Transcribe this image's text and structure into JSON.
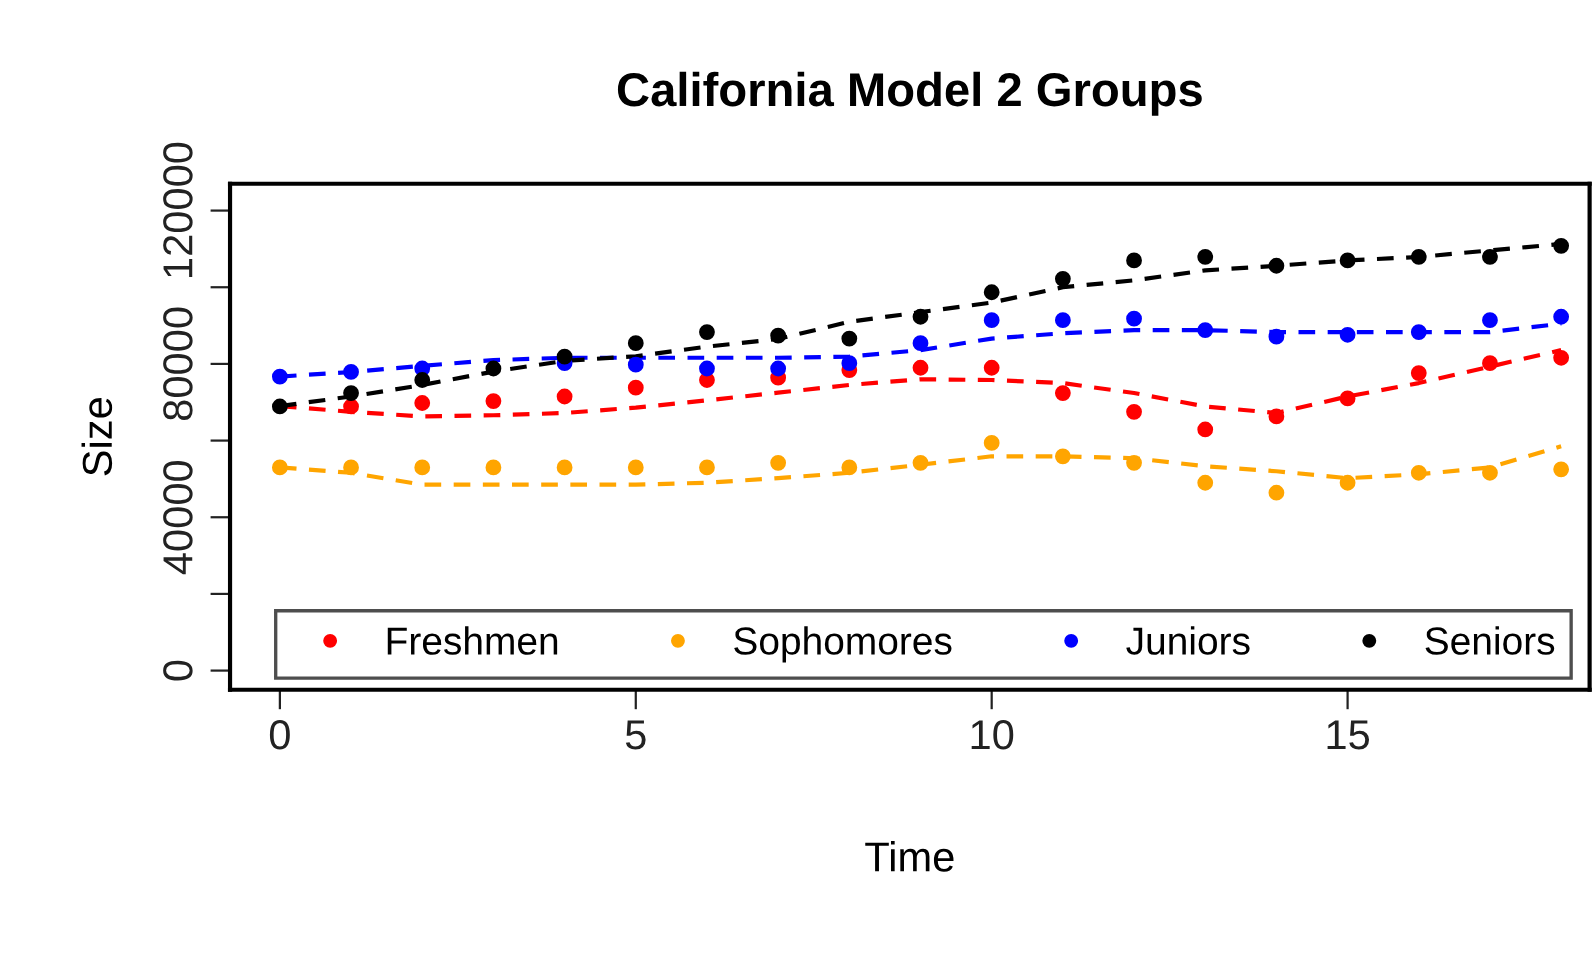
{
  "chart_data": {
    "type": "scatter",
    "title": "California Model 2 Groups",
    "xlabel": "Time",
    "ylabel": "Size",
    "x": [
      0,
      1,
      2,
      3,
      4,
      5,
      6,
      7,
      8,
      9,
      10,
      11,
      12,
      13,
      14,
      15,
      16,
      17,
      18
    ],
    "xlim": [
      -0.7,
      18.4
    ],
    "xticks": [
      0,
      5,
      10,
      15
    ],
    "ylim": [
      -5000,
      127000
    ],
    "yticks": [
      0,
      {
        "value": 20000,
        "label": null
      },
      40000,
      {
        "value": 60000,
        "label": null
      },
      80000,
      {
        "value": 100000,
        "label": null
      },
      120000
    ],
    "grid": false,
    "legend": "bottom",
    "series": [
      {
        "name": "Freshmen",
        "marker": "circle",
        "color": "#ff0000",
        "values": [
          null,
          68900,
          69800,
          70300,
          71500,
          73800,
          75800,
          76400,
          78400,
          79000,
          79000,
          72400,
          67500,
          62900,
          66300,
          71000,
          77600,
          80200,
          81600
        ]
      },
      {
        "name": "Sophomores",
        "marker": "circle",
        "color": "#ffa500",
        "values": [
          53000,
          53000,
          53000,
          53000,
          53000,
          53000,
          53000,
          54200,
          53000,
          54200,
          59400,
          55900,
          54200,
          49000,
          46400,
          49000,
          51600,
          51600,
          52500
        ]
      },
      {
        "name": "Juniors",
        "marker": "circle",
        "color": "#0000ff",
        "values": [
          76700,
          77900,
          78800,
          null,
          80200,
          79800,
          78800,
          78800,
          80200,
          85400,
          91400,
          91400,
          91800,
          88800,
          87100,
          87600,
          88300,
          91400,
          92300
        ]
      },
      {
        "name": "Seniors",
        "marker": "circle",
        "color": "#000000",
        "values": [
          68900,
          72400,
          75800,
          78800,
          81900,
          85400,
          88300,
          87400,
          86600,
          92300,
          98700,
          102200,
          107000,
          107900,
          105600,
          107000,
          107900,
          107900,
          110800
        ]
      },
      {
        "type": "line",
        "line_style": "dashed",
        "color": "#ff0000",
        "values": [
          69000,
          67500,
          66300,
          66600,
          67200,
          68600,
          70500,
          72500,
          74500,
          76000,
          75800,
          75000,
          72400,
          68900,
          67200,
          71500,
          75000,
          79300,
          83600
        ]
      },
      {
        "type": "line",
        "line_style": "dashed",
        "color": "#ffa500",
        "values": [
          53000,
          51600,
          48500,
          48500,
          48500,
          48500,
          49000,
          50200,
          51600,
          53700,
          55900,
          55900,
          55400,
          53300,
          52000,
          50200,
          51200,
          53000,
          58500
        ]
      },
      {
        "type": "line",
        "line_style": "dashed",
        "color": "#0000ff",
        "values": [
          76700,
          77900,
          79500,
          81000,
          81600,
          81600,
          81600,
          81600,
          81900,
          83600,
          86600,
          88000,
          88800,
          88800,
          88300,
          88300,
          88300,
          88300,
          90500
        ]
      },
      {
        "type": "line",
        "line_style": "dashed",
        "color": "#000000",
        "values": [
          69000,
          71500,
          74500,
          78000,
          80800,
          82000,
          84500,
          86500,
          91000,
          93500,
          96000,
          100000,
          101800,
          104400,
          105600,
          107000,
          107900,
          109600,
          111300
        ]
      }
    ]
  }
}
